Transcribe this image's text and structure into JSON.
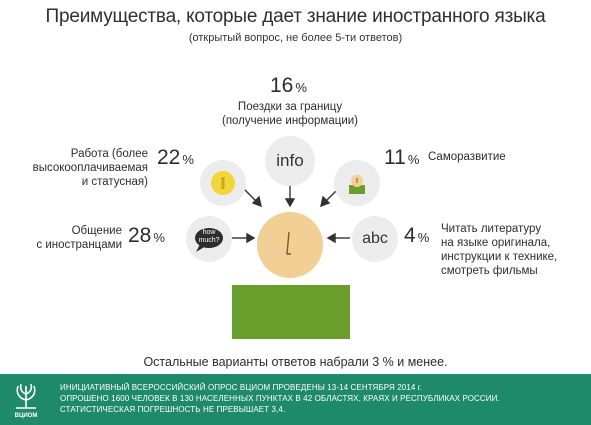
{
  "chart_data": {
    "type": "infographic",
    "title": "Преимущества, которые дает знание иностранного языка",
    "subtitle": "(открытый вопрос, не более 5-ти ответов)",
    "items": [
      {
        "label": "Поездки за границу (получение информации)",
        "label_lines": [
          "Поездки за границу",
          "(получение информации)"
        ],
        "value": 16,
        "unit": "%",
        "icon": "info"
      },
      {
        "label": "Работа (более высокооплачиваемая и статусная)",
        "label_lines": [
          "Работа (более",
          "высокооплачиваемая",
          "и статусная)"
        ],
        "value": 22,
        "unit": "%",
        "icon": "coin-icon"
      },
      {
        "label": "Саморазвитие",
        "label_lines": [
          "Саморазвитие"
        ],
        "value": 11,
        "unit": "%",
        "icon": "person-icon"
      },
      {
        "label": "Общение с иностранцами",
        "label_lines": [
          "Общение",
          "с иностранцами"
        ],
        "value": 28,
        "unit": "%",
        "icon": "speech-bubble-icon",
        "icon_text": [
          "how",
          "much?"
        ]
      },
      {
        "label": "Читать литературу на языке оригинала, инструкции к технике, смотреть фильмы",
        "label_lines": [
          "Читать литературу",
          "на языке оригинала,",
          "инструкции к технике,",
          "смотреть фильмы"
        ],
        "value": 4,
        "unit": "%",
        "icon": "abc"
      }
    ],
    "note": "Остальные варианты ответов набрали 3 % и менее."
  },
  "footer": {
    "logo_text": "ВЦИОМ",
    "lines": [
      "ИНИЦИАТИВНЫЙ ВСЕРОССИЙСКИЙ ОПРОС ВЦИОМ ПРОВЕДЕНЫ 13-14 СЕНТЯБРЯ 2014 г.",
      "ОПРОШЕНО 1600 ЧЕЛОВЕК В 130 НАСЕЛЕННЫХ ПУНКТАХ В 42 ОБЛАСТЯХ, КРАЯХ И РЕСПУБЛИКАХ РОССИИ.",
      "СТАТИСТИЧЕСКАЯ ПОГРЕШНОСТЬ НЕ ПРЕВЫШАЕТ 3,4."
    ]
  },
  "colors": {
    "accent_green": "#1f8a6a",
    "body_green": "#6a9e2c",
    "head": "#f2cf94",
    "coin": "#f1d63a",
    "circle": "#ececec"
  }
}
